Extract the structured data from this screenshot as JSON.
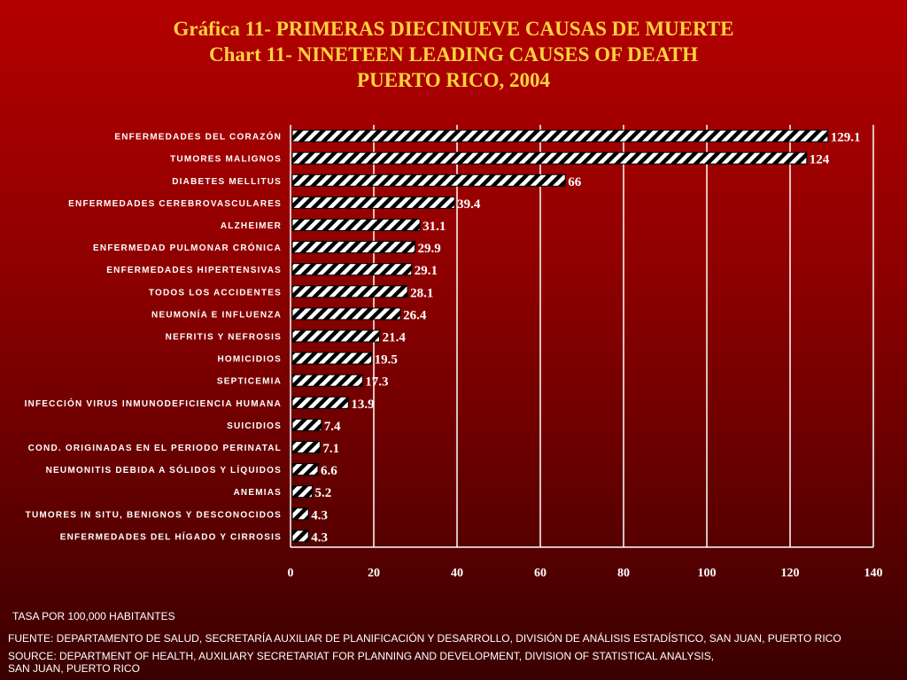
{
  "title": {
    "line1": "Gráfica 11- PRIMERAS DIECINUEVE CAUSAS DE MUERTE",
    "line2": "Chart 11- NINETEEN LEADING CAUSES OF DEATH",
    "line3": "PUERTO RICO, 2004"
  },
  "notes": {
    "rate": "TASA POR 100,000 HABITANTES",
    "fuente": "FUENTE: DEPARTAMENTO DE SALUD, SECRETARÍA AUXILIAR DE PLANIFICACIÓN Y DESARROLLO, DIVISIÓN DE ANÁLISIS ESTADÍSTICO, SAN JUAN, PUERTO RICO",
    "source1": "SOURCE: DEPARTMENT OF HEALTH, AUXILIARY SECRETARIAT FOR PLANNING AND DEVELOPMENT, DIVISION OF STATISTICAL ANALYSIS,",
    "source2": "SAN JUAN, PUERTO RICO"
  },
  "colors": {
    "bar_fill": "#ffffff",
    "bar_hatch": "#000000",
    "title": "#ffd23f",
    "text": "#ffffff"
  },
  "chart_data": {
    "type": "bar",
    "orientation": "horizontal",
    "categories": [
      "ENFERMEDADES DEL CORAZÓN",
      "TUMORES MALIGNOS",
      "DIABETES MELLITUS",
      "ENFERMEDADES CEREBROVASCULARES",
      "ALZHEIMER",
      "ENFERMEDAD PULMONAR CRÓNICA",
      "ENFERMEDADES HIPERTENSIVAS",
      "TODOS LOS ACCIDENTES",
      "NEUMONÍA E INFLUENZA",
      "NEFRITIS Y NEFROSIS",
      "HOMICIDIOS",
      "SEPTICEMIA",
      "INFECCIÓN VIRUS INMUNODEFICIENCIA HUMANA",
      "SUICIDIOS",
      "COND. ORIGINADAS EN EL PERIODO PERINATAL",
      "NEUMONITIS DEBIDA A SÓLIDOS Y LÍQUIDOS",
      "ANEMIAS",
      "TUMORES IN SITU, BENIGNOS Y DESCONOCIDOS",
      "ENFERMEDADES DEL HÍGADO Y CIRROSIS"
    ],
    "values": [
      129.1,
      124,
      66,
      39.4,
      31.1,
      29.9,
      29.1,
      28.1,
      26.4,
      21.4,
      19.5,
      17.3,
      13.9,
      7.4,
      7.1,
      6.6,
      5.2,
      4.3,
      4.3
    ],
    "value_labels": [
      "129.1",
      "124",
      "66",
      "39.4",
      "31.1",
      "29.9",
      "29.1",
      "28.1",
      "26.4",
      "21.4",
      "19.5",
      "17.3",
      "13.9",
      "7.4",
      "7.1",
      "6.6",
      "5.2",
      "4.3",
      "4.3"
    ],
    "xlim": [
      0,
      140
    ],
    "xticks": [
      0,
      20,
      40,
      60,
      80,
      100,
      120,
      140
    ],
    "xtick_labels": [
      "0",
      "20",
      "40",
      "60",
      "80",
      "100",
      "120",
      "140"
    ],
    "grid": "vertical",
    "legend": "none",
    "bar_pattern": "diagonal-hatch"
  }
}
